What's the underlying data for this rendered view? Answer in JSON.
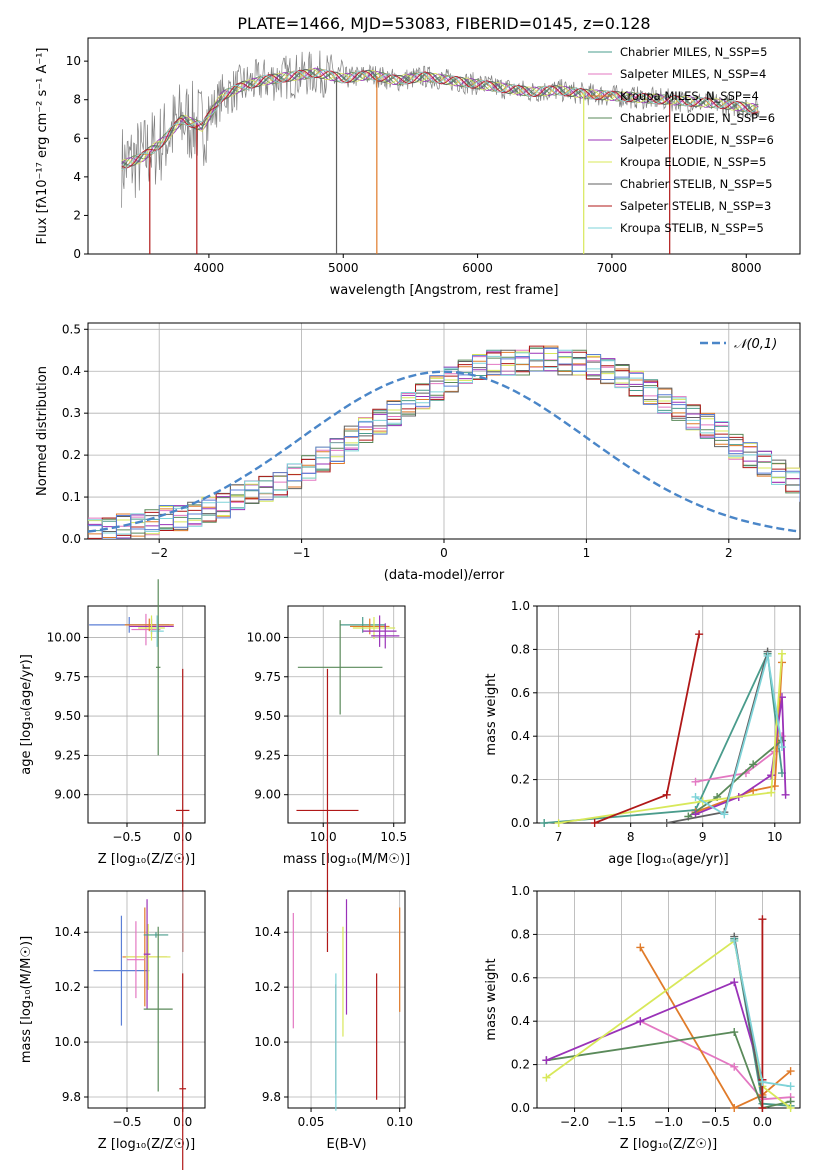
{
  "figure_title": "PLATE=1466, MJD=53083, FIBERID=0145, z=0.128",
  "colors": {
    "chabrier_miles": "#4a9c8c",
    "salpeter_miles": "#e377c2",
    "kroupa_miles": "#e07b2a",
    "chabrier_elodie": "#5a8a5a",
    "salpeter_elodie": "#9a32b8",
    "kroupa_elodie": "#d8e85a",
    "chabrier_stelib": "#606060",
    "salpeter_stelib": "#b01818",
    "kroupa_stelib": "#7ed3d8",
    "blue_hist": "#5b7fd6",
    "grid": "#b0b0b0"
  },
  "chart_data": [
    {
      "id": "spectrum",
      "type": "line",
      "title": "PLATE=1466, MJD=53083, FIBERID=0145, z=0.128",
      "xlabel": "wavelength [Angstrom, rest frame]",
      "ylabel": "Flux [fλ10⁻¹⁷ erg cm⁻² s⁻¹ A⁻¹]",
      "xlim": [
        3100,
        8400
      ],
      "ylim": [
        0,
        11.2
      ],
      "xticks": [
        4000,
        5000,
        6000,
        7000,
        8000
      ],
      "yticks": [
        0,
        2,
        4,
        6,
        8,
        10
      ],
      "grid": false,
      "legend_position": "top-right",
      "data_x": [
        3350,
        3500,
        3650,
        3800,
        3950,
        4100,
        4250,
        4400,
        4600,
        4800,
        5000,
        5200,
        5400,
        5600,
        5800,
        6000,
        6200,
        6400,
        6600,
        6800,
        7000,
        7200,
        7400,
        7600,
        7800,
        8000,
        8100
      ],
      "data_y": [
        4.6,
        5.0,
        5.8,
        7.0,
        6.6,
        8.2,
        8.7,
        9.0,
        9.2,
        9.4,
        9.1,
        9.3,
        9.0,
        9.2,
        9.0,
        8.8,
        8.6,
        8.4,
        8.5,
        8.3,
        8.2,
        8.1,
        8.0,
        7.9,
        7.8,
        7.6,
        7.5
      ],
      "series": [
        {
          "name": "Chabrier MILES, N_SSP=5",
          "color_key": "chabrier_miles"
        },
        {
          "name": "Salpeter MILES, N_SSP=4",
          "color_key": "salpeter_miles"
        },
        {
          "name": "Kroupa MILES, N_SSP=4",
          "color_key": "kroupa_miles"
        },
        {
          "name": "Chabrier ELODIE, N_SSP=6",
          "color_key": "chabrier_elodie"
        },
        {
          "name": "Salpeter ELODIE, N_SSP=6",
          "color_key": "salpeter_elodie"
        },
        {
          "name": "Kroupa ELODIE, N_SSP=5",
          "color_key": "kroupa_elodie"
        },
        {
          "name": "Chabrier STELIB, N_SSP=5",
          "color_key": "chabrier_stelib"
        },
        {
          "name": "Salpeter STELIB, N_SSP=3",
          "color_key": "salpeter_stelib"
        },
        {
          "name": "Kroupa STELIB, N_SSP=5",
          "color_key": "kroupa_stelib"
        }
      ]
    },
    {
      "id": "residuals",
      "type": "bar",
      "xlabel": "(data-model)/error",
      "ylabel": "Normed distribution",
      "xlim": [
        -2.5,
        2.5
      ],
      "ylim": [
        0,
        0.515
      ],
      "xticks": [
        -2,
        -1,
        0,
        1,
        2
      ],
      "yticks": [
        0.0,
        0.1,
        0.2,
        0.3,
        0.4,
        0.5
      ],
      "grid": true,
      "legend": "𝒩(0,1)",
      "legend_position": "top-right",
      "bin_width": 0.1,
      "hist_base": [
        0.02,
        0.02,
        0.03,
        0.03,
        0.04,
        0.05,
        0.05,
        0.06,
        0.07,
        0.08,
        0.1,
        0.11,
        0.12,
        0.13,
        0.15,
        0.17,
        0.19,
        0.21,
        0.24,
        0.26,
        0.28,
        0.3,
        0.32,
        0.34,
        0.36,
        0.38,
        0.4,
        0.41,
        0.42,
        0.42,
        0.42,
        0.43,
        0.43,
        0.42,
        0.42,
        0.41,
        0.4,
        0.39,
        0.37,
        0.35,
        0.33,
        0.31,
        0.29,
        0.27,
        0.25,
        0.22,
        0.2,
        0.18,
        0.16,
        0.14
      ],
      "hist_base_tail": [
        0.12,
        0.11,
        0.1,
        0.08,
        0.07,
        0.06,
        0.05,
        0.05,
        0.04,
        0.03
      ]
    },
    {
      "id": "z_age",
      "type": "scatter",
      "xlabel": "Z [log₁₀(Z/Z☉)]",
      "ylabel": "age  [log₁₀(age/yr)]",
      "xlim": [
        -0.85,
        0.2
      ],
      "ylim": [
        8.82,
        10.2
      ],
      "xticks": [
        -0.5,
        0.0
      ],
      "xtick_labels": [
        "−0.5",
        "0.0"
      ],
      "yticks": [
        9.0,
        9.25,
        9.5,
        9.75,
        10.0
      ],
      "ytick_labels": [
        "9.00",
        "9.25",
        "9.50",
        "9.75",
        "10.00"
      ],
      "grid": true,
      "points": [
        {
          "x": -0.48,
          "y": 10.08,
          "xerr": 0.36,
          "yerr": 0.05,
          "color_key": "blue_hist"
        },
        {
          "x": -0.33,
          "y": 10.05,
          "xerr": 0.13,
          "yerr": 0.1,
          "color_key": "salpeter_miles"
        },
        {
          "x": -0.28,
          "y": 10.07,
          "xerr": 0.2,
          "yerr": 0.05,
          "color_key": "salpeter_elodie"
        },
        {
          "x": -0.3,
          "y": 10.08,
          "xerr": 0.22,
          "yerr": 0.04,
          "color_key": "kroupa_miles"
        },
        {
          "x": -0.28,
          "y": 10.06,
          "xerr": 0.12,
          "yerr": 0.08,
          "color_key": "kroupa_elodie"
        },
        {
          "x": -0.23,
          "y": 10.04,
          "xerr": 0.06,
          "yerr": 0.1,
          "color_key": "kroupa_stelib"
        },
        {
          "x": -0.22,
          "y": 9.81,
          "xerr": 0.02,
          "yerr": 0.56,
          "color_key": "chabrier_elodie"
        },
        {
          "x": 0.0,
          "y": 8.9,
          "xerr": 0.06,
          "yerr": 0.9,
          "color_key": "salpeter_stelib"
        }
      ]
    },
    {
      "id": "mass_age",
      "type": "scatter",
      "xlabel": "mass [log₁₀(M/M☉)]",
      "ylabel": "",
      "xlim": [
        9.75,
        10.58
      ],
      "ylim": [
        8.82,
        10.2
      ],
      "xticks": [
        10.0,
        10.5
      ],
      "xtick_labels": [
        "10.0",
        "10.5"
      ],
      "yticks": [
        9.0,
        9.25,
        9.5,
        9.75,
        10.0
      ],
      "ytick_labels": [
        "9.00",
        "9.25",
        "9.50",
        "9.75",
        "10.00"
      ],
      "grid": true,
      "points": [
        {
          "x": 10.28,
          "y": 10.08,
          "xerr": 0.16,
          "yerr": 0.05,
          "color_key": "chabrier_miles"
        },
        {
          "x": 10.33,
          "y": 10.07,
          "xerr": 0.14,
          "yerr": 0.05,
          "color_key": "kroupa_miles"
        },
        {
          "x": 10.36,
          "y": 10.06,
          "xerr": 0.15,
          "yerr": 0.07,
          "color_key": "kroupa_elodie"
        },
        {
          "x": 10.4,
          "y": 10.04,
          "xerr": 0.12,
          "yerr": 0.1,
          "color_key": "salpeter_elodie"
        },
        {
          "x": 10.44,
          "y": 10.01,
          "xerr": 0.1,
          "yerr": 0.08,
          "color_key": "salpeter_elodie"
        },
        {
          "x": 10.12,
          "y": 9.81,
          "xerr": 0.3,
          "yerr": 0.3,
          "color_key": "chabrier_elodie"
        },
        {
          "x": 10.03,
          "y": 8.9,
          "xerr": 0.22,
          "yerr": 0.9,
          "color_key": "salpeter_stelib"
        }
      ]
    },
    {
      "id": "age_weight",
      "type": "line",
      "xlabel": "age  [log₁₀(age/yr)]",
      "ylabel": "mass weight",
      "xlim": [
        6.7,
        10.35
      ],
      "ylim": [
        0,
        1.0
      ],
      "xticks": [
        7,
        8,
        9,
        10
      ],
      "yticks": [
        0.0,
        0.2,
        0.4,
        0.6,
        0.8,
        1.0
      ],
      "grid": true,
      "series": [
        {
          "name": "Chabrier MILES",
          "color_key": "chabrier_miles",
          "x": [
            6.8,
            8.9,
            9.9,
            10.1
          ],
          "y": [
            0.0,
            0.06,
            0.78,
            0.23
          ]
        },
        {
          "name": "Salpeter MILES",
          "color_key": "salpeter_miles",
          "x": [
            8.9,
            9.6,
            10.0,
            10.1
          ],
          "y": [
            0.19,
            0.23,
            0.33,
            0.4
          ]
        },
        {
          "name": "Kroupa MILES",
          "color_key": "kroupa_miles",
          "x": [
            8.9,
            9.7,
            10.0,
            10.1
          ],
          "y": [
            0.05,
            0.15,
            0.17,
            0.74
          ]
        },
        {
          "name": "Chabrier ELODIE",
          "color_key": "chabrier_elodie",
          "x": [
            8.8,
            9.2,
            9.7,
            10.1
          ],
          "y": [
            0.03,
            0.12,
            0.27,
            0.38
          ]
        },
        {
          "name": "Salpeter ELODIE",
          "color_key": "salpeter_elodie",
          "x": [
            8.9,
            9.5,
            9.95,
            10.1,
            10.15
          ],
          "y": [
            0.04,
            0.12,
            0.22,
            0.58,
            0.13
          ]
        },
        {
          "name": "Kroupa ELODIE",
          "color_key": "kroupa_elodie",
          "x": [
            7.0,
            9.0,
            9.95,
            10.1
          ],
          "y": [
            0.0,
            0.1,
            0.14,
            0.78
          ]
        },
        {
          "name": "Chabrier STELIB",
          "color_key": "chabrier_stelib",
          "x": [
            8.5,
            9.3,
            9.9
          ],
          "y": [
            0.0,
            0.05,
            0.79
          ]
        },
        {
          "name": "Salpeter STELIB",
          "color_key": "salpeter_stelib",
          "x": [
            7.5,
            8.5,
            8.95
          ],
          "y": [
            0.0,
            0.13,
            0.87
          ]
        },
        {
          "name": "Kroupa STELIB",
          "color_key": "kroupa_stelib",
          "x": [
            8.9,
            9.3,
            9.9,
            10.1
          ],
          "y": [
            0.12,
            0.04,
            0.77,
            0.35
          ]
        }
      ]
    },
    {
      "id": "z_mass",
      "type": "scatter",
      "xlabel": "Z [log₁₀(Z/Z☉)]",
      "ylabel": "mass [log₁₀(M/M☉)]",
      "xlim": [
        -0.85,
        0.2
      ],
      "ylim": [
        9.76,
        10.55
      ],
      "xticks": [
        -0.5,
        0.0
      ],
      "xtick_labels": [
        "−0.5",
        "0.0"
      ],
      "yticks": [
        9.8,
        10.0,
        10.2,
        10.4
      ],
      "ytick_labels": [
        "9.8",
        "10.0",
        "10.2",
        "10.4"
      ],
      "grid": true,
      "points": [
        {
          "x": -0.55,
          "y": 10.26,
          "xerr": 0.25,
          "yerr": 0.2,
          "color_key": "blue_hist"
        },
        {
          "x": -0.34,
          "y": 10.31,
          "xerr": 0.2,
          "yerr": 0.18,
          "color_key": "kroupa_miles"
        },
        {
          "x": -0.31,
          "y": 10.31,
          "xerr": 0.2,
          "yerr": 0.12,
          "color_key": "kroupa_elodie"
        },
        {
          "x": -0.42,
          "y": 10.3,
          "xerr": 0.08,
          "yerr": 0.14,
          "color_key": "salpeter_miles"
        },
        {
          "x": -0.32,
          "y": 10.32,
          "xerr": 0.03,
          "yerr": 0.2,
          "color_key": "salpeter_elodie"
        },
        {
          "x": -0.24,
          "y": 10.39,
          "xerr": 0.11,
          "yerr": 0.01,
          "color_key": "chabrier_miles"
        },
        {
          "x": -0.22,
          "y": 10.12,
          "xerr": 0.13,
          "yerr": 0.3,
          "color_key": "chabrier_elodie"
        },
        {
          "x": 0.0,
          "y": 9.83,
          "xerr": 0.03,
          "yerr": 0.42,
          "color_key": "salpeter_stelib"
        }
      ]
    },
    {
      "id": "ebv_mass",
      "type": "scatter",
      "xlabel": "E(B-V)",
      "ylabel": "",
      "xlim": [
        0.037,
        0.103
      ],
      "ylim": [
        9.76,
        10.55
      ],
      "xticks": [
        0.05,
        0.1
      ],
      "xtick_labels": [
        "0.05",
        "0.10"
      ],
      "yticks": [
        9.8,
        10.0,
        10.2,
        10.4
      ],
      "ytick_labels": [
        "9.8",
        "10.0",
        "10.2",
        "10.4"
      ],
      "grid": true,
      "points": [
        {
          "x": 0.04,
          "y": 10.26,
          "xerr": 0.0,
          "yerr": 0.21,
          "color_key": "salpeter_miles"
        },
        {
          "x": 0.064,
          "y": 10.01,
          "xerr": 0.0,
          "yerr": 0.2,
          "color_key": "chabrier_stelib"
        },
        {
          "x": 0.068,
          "y": 10.22,
          "xerr": 0.0,
          "yerr": 0.2,
          "color_key": "kroupa_elodie"
        },
        {
          "x": 0.07,
          "y": 10.31,
          "xerr": 0.0,
          "yerr": 0.21,
          "color_key": "salpeter_elodie"
        },
        {
          "x": 0.087,
          "y": 10.02,
          "xerr": 0.0,
          "yerr": 0.23,
          "color_key": "salpeter_stelib"
        },
        {
          "x": 0.1,
          "y": 10.3,
          "xerr": 0.0,
          "yerr": 0.19,
          "color_key": "kroupa_miles"
        },
        {
          "x": 0.064,
          "y": 10.0,
          "xerr": 0.0,
          "yerr": 0.25,
          "color_key": "kroupa_stelib"
        }
      ]
    },
    {
      "id": "z_weight",
      "type": "line",
      "xlabel": "Z [log₁₀(Z/Z☉)]",
      "ylabel": "mass weight",
      "xlim": [
        -2.4,
        0.4
      ],
      "ylim": [
        0,
        1.0
      ],
      "xticks": [
        -2.0,
        -1.5,
        -1.0,
        -0.5,
        0.0
      ],
      "xtick_labels": [
        "−2.0",
        "−1.5",
        "−1.0",
        "−0.5",
        "0.0"
      ],
      "yticks": [
        0.0,
        0.2,
        0.4,
        0.6,
        0.8,
        1.0
      ],
      "grid": true,
      "series": [
        {
          "name": "Chabrier MILES",
          "color_key": "chabrier_miles",
          "x": [
            -0.3,
            0.0,
            0.3
          ],
          "y": [
            0.78,
            0.02,
            0.01
          ]
        },
        {
          "name": "Salpeter MILES",
          "color_key": "salpeter_miles",
          "x": [
            -1.3,
            -0.3,
            0.0,
            0.3
          ],
          "y": [
            0.4,
            0.19,
            0.04,
            0.05
          ]
        },
        {
          "name": "Kroupa MILES",
          "color_key": "kroupa_miles",
          "x": [
            -1.3,
            -0.3,
            0.0,
            0.3
          ],
          "y": [
            0.74,
            0.0,
            0.06,
            0.17
          ]
        },
        {
          "name": "Chabrier ELODIE",
          "color_key": "chabrier_elodie",
          "x": [
            -2.3,
            -0.3,
            0.0,
            0.3
          ],
          "y": [
            0.22,
            0.35,
            0.0,
            0.03
          ]
        },
        {
          "name": "Salpeter ELODIE",
          "color_key": "salpeter_elodie",
          "x": [
            -2.3,
            -1.3,
            -0.3,
            0.0
          ],
          "y": [
            0.22,
            0.4,
            0.58,
            0.13
          ]
        },
        {
          "name": "Kroupa ELODIE",
          "color_key": "kroupa_elodie",
          "x": [
            -2.3,
            -0.3,
            0.0,
            0.3
          ],
          "y": [
            0.14,
            0.77,
            0.1,
            0.0
          ]
        },
        {
          "name": "Chabrier STELIB",
          "color_key": "chabrier_stelib",
          "x": [
            -0.3,
            0.0
          ],
          "y": [
            0.79,
            0.05
          ]
        },
        {
          "name": "Salpeter STELIB",
          "color_key": "salpeter_stelib",
          "x": [
            0.0,
            0.0,
            0.0
          ],
          "y": [
            0.87,
            0.13,
            0.0
          ]
        },
        {
          "name": "Kroupa STELIB",
          "color_key": "kroupa_stelib",
          "x": [
            -0.3,
            0.0,
            0.3
          ],
          "y": [
            0.77,
            0.12,
            0.1
          ]
        }
      ]
    }
  ]
}
